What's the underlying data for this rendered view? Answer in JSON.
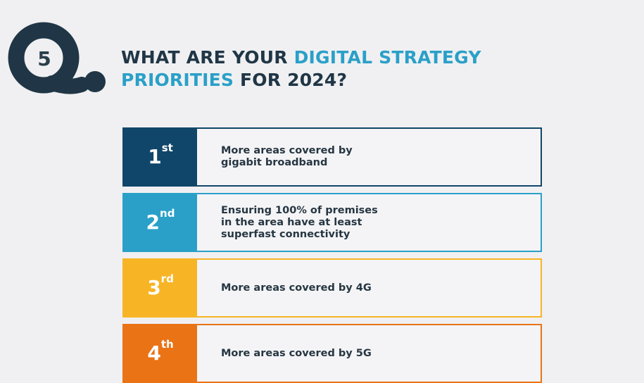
{
  "question": {
    "number": "5",
    "heading_part1": "WHAT ARE YOUR ",
    "heading_accent1": "DIGITAL STRATEGY",
    "heading_accent2": "PRIORITIES",
    "heading_part2": " FOR 2024?"
  },
  "colors": {
    "navy": "#10466a",
    "teal": "#2aa0c8",
    "yellow": "#f7b526",
    "orange": "#ea7316",
    "text_dark": "#203646",
    "background": "#f0f0f2"
  },
  "priorities": [
    {
      "rank": "1",
      "suffix": "st",
      "text": "More areas covered by\ngigabit broadband"
    },
    {
      "rank": "2",
      "suffix": "nd",
      "text": "Ensuring 100% of premises\nin the area have at least\nsuperfast connectivity"
    },
    {
      "rank": "3",
      "suffix": "rd",
      "text": "More areas covered by 4G"
    },
    {
      "rank": "4",
      "suffix": "th",
      "text": "More areas covered by 5G"
    }
  ]
}
